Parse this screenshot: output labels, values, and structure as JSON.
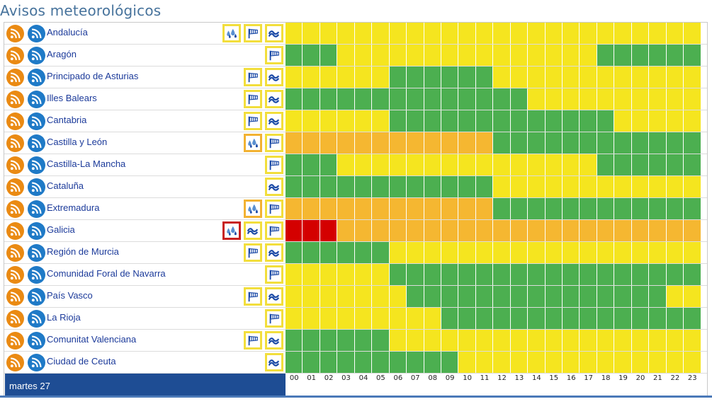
{
  "page": {
    "title": "Avisos meteorológicos"
  },
  "colors": {
    "G": "#4caf50",
    "Y": "#f5e51f",
    "O": "#f5b731",
    "R": "#d40000",
    "border_yellow": "#f2de3c",
    "border_orange": "#f2b232",
    "border_red": "#c81e1e",
    "icon_blue": "#1b4aa6",
    "drop_blue": "#5a8fd0"
  },
  "hours": [
    "00",
    "01",
    "02",
    "03",
    "04",
    "05",
    "06",
    "07",
    "08",
    "09",
    "10",
    "11",
    "12",
    "13",
    "14",
    "15",
    "16",
    "17",
    "18",
    "19",
    "20",
    "21",
    "22",
    "23"
  ],
  "footer": {
    "date_label": "martes 27"
  },
  "regions": [
    {
      "name": "Andalucía",
      "icons": [
        {
          "type": "rain-icon",
          "level": "yellow"
        },
        {
          "type": "wind-icon",
          "level": "yellow"
        },
        {
          "type": "coastal-icon",
          "level": "yellow"
        }
      ],
      "hours": "YYYYYYYYYYYYYYYYYYYYYYYY"
    },
    {
      "name": "Aragón",
      "icons": [
        {
          "type": "wind-icon",
          "level": "yellow"
        }
      ],
      "hours": "GGGYYYYYYYYYYYYYYYGGGGGG"
    },
    {
      "name": "Principado de Asturias",
      "icons": [
        {
          "type": "wind-icon",
          "level": "yellow"
        },
        {
          "type": "coastal-icon",
          "level": "yellow"
        }
      ],
      "hours": "YYYYYYGGGGGGYYYYYYYYYYYY"
    },
    {
      "name": "Illes Balears",
      "icons": [
        {
          "type": "wind-icon",
          "level": "yellow"
        },
        {
          "type": "coastal-icon",
          "level": "yellow"
        }
      ],
      "hours": "GGGGGGGGGGGGGGYYYYYYYYYY"
    },
    {
      "name": "Cantabria",
      "icons": [
        {
          "type": "wind-icon",
          "level": "yellow"
        },
        {
          "type": "coastal-icon",
          "level": "yellow"
        }
      ],
      "hours": "YYYYYYGGGGGGGGGGGGGYYYYY"
    },
    {
      "name": "Castilla y León",
      "icons": [
        {
          "type": "rain-icon",
          "level": "orange"
        },
        {
          "type": "wind-icon",
          "level": "yellow"
        }
      ],
      "hours": "OOOOOOOOOOOOGGGGGGGGGGGG"
    },
    {
      "name": "Castilla-La Mancha",
      "icons": [
        {
          "type": "wind-icon",
          "level": "yellow"
        }
      ],
      "hours": "GGGYYYYYYYYYYYYYYYGGGGGG"
    },
    {
      "name": "Cataluña",
      "icons": [
        {
          "type": "coastal-icon",
          "level": "yellow"
        }
      ],
      "hours": "GGGGGGGGGGGGYYYYYYYYYYYY"
    },
    {
      "name": "Extremadura",
      "icons": [
        {
          "type": "rain-icon",
          "level": "orange"
        },
        {
          "type": "wind-icon",
          "level": "yellow"
        }
      ],
      "hours": "OOOOOOOOOOOOGGGGGGGGGGGG"
    },
    {
      "name": "Galicia",
      "icons": [
        {
          "type": "rain-icon",
          "level": "red"
        },
        {
          "type": "coastal-icon",
          "level": "yellow"
        },
        {
          "type": "wind-icon",
          "level": "yellow"
        }
      ],
      "hours": "RRROOOOOOOOOOOOOOOOOOOOO"
    },
    {
      "name": "Región de Murcia",
      "icons": [
        {
          "type": "wind-icon",
          "level": "yellow"
        },
        {
          "type": "coastal-icon",
          "level": "yellow"
        }
      ],
      "hours": "GGGGGGYYYYYYYYYYYYYYYYYY"
    },
    {
      "name": "Comunidad Foral de Navarra",
      "icons": [
        {
          "type": "wind-icon",
          "level": "yellow"
        }
      ],
      "hours": "YYYYYYGGGGGGGGGGGGGGGGGG"
    },
    {
      "name": "País Vasco",
      "icons": [
        {
          "type": "wind-icon",
          "level": "yellow"
        },
        {
          "type": "coastal-icon",
          "level": "yellow"
        }
      ],
      "hours": "YYYYYYYGGGGGGGGGGGGGGGYY"
    },
    {
      "name": "La Rioja",
      "icons": [
        {
          "type": "wind-icon",
          "level": "yellow"
        }
      ],
      "hours": "YYYYYYYYYGGGGGGGGGGGGGGG"
    },
    {
      "name": "Comunitat Valenciana",
      "icons": [
        {
          "type": "wind-icon",
          "level": "yellow"
        },
        {
          "type": "coastal-icon",
          "level": "yellow"
        }
      ],
      "hours": "GGGGGGYYYYYYYYYYYYYYYYYY"
    },
    {
      "name": "Ciudad de Ceuta",
      "icons": [
        {
          "type": "coastal-icon",
          "level": "yellow"
        }
      ],
      "hours": "GGGGGGGGGGYYYYYYYYYYYYYY"
    }
  ]
}
